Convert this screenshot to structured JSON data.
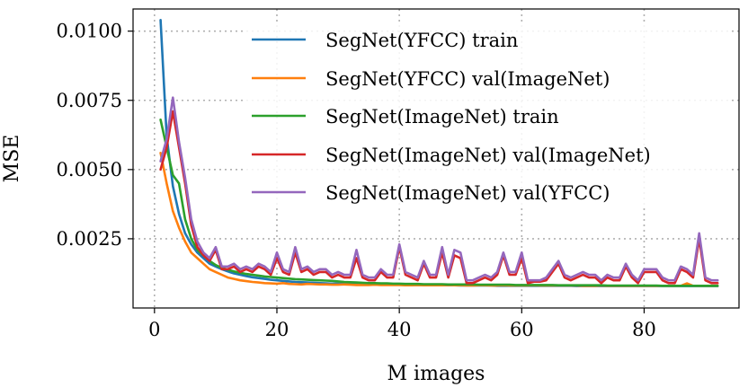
{
  "chart_data": {
    "type": "line",
    "title": "",
    "xlabel": "M images",
    "ylabel": "MSE",
    "xlim": [
      -3.5,
      95.5
    ],
    "ylim": [
      0.0,
      0.0108
    ],
    "xticks": [
      0,
      20,
      40,
      60,
      80
    ],
    "xtick_labels": [
      "0",
      "20",
      "40",
      "60",
      "80"
    ],
    "yticks": [
      0.0025,
      0.005,
      0.0075,
      0.01
    ],
    "ytick_labels": [
      "0.0025",
      "0.0050",
      "0.0075",
      "0.0100"
    ],
    "grid": true,
    "legend_position": "top-right",
    "x": [
      1,
      2,
      3,
      4,
      5,
      6,
      7,
      8,
      9,
      10,
      11,
      12,
      13,
      14,
      15,
      16,
      17,
      18,
      19,
      20,
      21,
      22,
      23,
      24,
      25,
      26,
      27,
      28,
      29,
      30,
      31,
      32,
      33,
      34,
      35,
      36,
      37,
      38,
      39,
      40,
      41,
      42,
      43,
      44,
      45,
      46,
      47,
      48,
      49,
      50,
      51,
      52,
      53,
      54,
      55,
      56,
      57,
      58,
      59,
      60,
      61,
      62,
      63,
      64,
      65,
      66,
      67,
      68,
      69,
      70,
      71,
      72,
      73,
      74,
      75,
      76,
      77,
      78,
      79,
      80,
      81,
      82,
      83,
      84,
      85,
      86,
      87,
      88,
      89,
      90,
      91,
      92
    ],
    "series": [
      {
        "name": "SegNet(YFCC) train",
        "color": "#1f77b4",
        "values": [
          0.0104,
          0.0062,
          0.0044,
          0.0034,
          0.0027,
          0.0023,
          0.002,
          0.0018,
          0.0016,
          0.0015,
          0.0014,
          0.00132,
          0.00125,
          0.0012,
          0.00115,
          0.00111,
          0.00108,
          0.00105,
          0.00102,
          0.001,
          0.00098,
          0.00096,
          0.00094,
          0.00093,
          0.00092,
          0.00091,
          0.0009,
          0.00089,
          0.00088,
          0.00088,
          0.00087,
          0.00087,
          0.00086,
          0.00086,
          0.00085,
          0.00085,
          0.00085,
          0.00084,
          0.00084,
          0.00084,
          0.00083,
          0.00083,
          0.00083,
          0.00083,
          0.00082,
          0.00082,
          0.00082,
          0.00082,
          0.00082,
          0.00081,
          0.00081,
          0.00081,
          0.00081,
          0.00081,
          0.00081,
          0.0008,
          0.0008,
          0.0008,
          0.0008,
          0.0008,
          0.0008,
          0.0008,
          0.0008,
          0.0008,
          0.0008,
          0.0008,
          0.0008,
          0.0008,
          0.00079,
          0.00079,
          0.00079,
          0.00079,
          0.00079,
          0.00079,
          0.00079,
          0.00079,
          0.00079,
          0.00079,
          0.00079,
          0.00079,
          0.00079,
          0.00079,
          0.00079,
          0.00079,
          0.00079,
          0.00079,
          0.00079,
          0.00079,
          0.00079,
          0.00079,
          0.00079,
          0.00079
        ]
      },
      {
        "name": "SegNet(YFCC) val(ImageNet)",
        "color": "#ff7f0e",
        "values": [
          0.0056,
          0.0045,
          0.0035,
          0.0029,
          0.0024,
          0.002,
          0.0018,
          0.0016,
          0.0014,
          0.0013,
          0.0012,
          0.0011,
          0.00105,
          0.001,
          0.00097,
          0.00094,
          0.00092,
          0.0009,
          0.00089,
          0.00088,
          0.0009,
          0.00087,
          0.00086,
          0.00085,
          0.00087,
          0.00086,
          0.00085,
          0.00085,
          0.00084,
          0.00084,
          0.00085,
          0.00084,
          0.00083,
          0.00083,
          0.00083,
          0.00084,
          0.00083,
          0.00083,
          0.00083,
          0.00083,
          0.00082,
          0.00082,
          0.00083,
          0.00082,
          0.00082,
          0.00082,
          0.00082,
          0.00083,
          0.00082,
          0.00082,
          0.00081,
          0.00081,
          0.00082,
          0.00082,
          0.00081,
          0.00081,
          0.00082,
          0.00081,
          0.00081,
          0.00081,
          0.00081,
          0.00082,
          0.00081,
          0.00081,
          0.00081,
          0.00081,
          0.00081,
          0.00081,
          0.00081,
          0.0008,
          0.0008,
          0.0008,
          0.00081,
          0.0008,
          0.0008,
          0.0008,
          0.0008,
          0.0008,
          0.0008,
          0.0008,
          0.0008,
          0.0008,
          0.0008,
          0.0008,
          0.0008,
          0.0008,
          0.00089,
          0.0008,
          0.0008,
          0.0008,
          0.0008,
          0.0008
        ]
      },
      {
        "name": "SegNet(ImageNet) train",
        "color": "#2ca02c",
        "values": [
          0.0068,
          0.0058,
          0.0048,
          0.0045,
          0.0032,
          0.0025,
          0.0021,
          0.0019,
          0.0017,
          0.00155,
          0.00145,
          0.00138,
          0.00132,
          0.00127,
          0.00123,
          0.0012,
          0.00117,
          0.00114,
          0.00112,
          0.0011,
          0.00108,
          0.00106,
          0.00104,
          0.00103,
          0.00102,
          0.00101,
          0.001,
          0.00099,
          0.00098,
          0.00096,
          0.00094,
          0.00093,
          0.00092,
          0.00091,
          0.0009,
          0.0009,
          0.00089,
          0.00089,
          0.00088,
          0.00088,
          0.00087,
          0.00087,
          0.00087,
          0.00086,
          0.00086,
          0.00086,
          0.00086,
          0.00085,
          0.00085,
          0.00085,
          0.00085,
          0.00085,
          0.00084,
          0.00084,
          0.00084,
          0.00084,
          0.00084,
          0.00084,
          0.00083,
          0.00083,
          0.00083,
          0.00083,
          0.00083,
          0.00083,
          0.00083,
          0.00082,
          0.00082,
          0.00082,
          0.00082,
          0.00082,
          0.00082,
          0.00082,
          0.00082,
          0.00081,
          0.00081,
          0.00081,
          0.00081,
          0.00081,
          0.00081,
          0.00081,
          0.00081,
          0.00081,
          0.0008,
          0.0008,
          0.0008,
          0.0008,
          0.0008,
          0.0008,
          0.0008,
          0.0008,
          0.0008,
          0.0008
        ]
      },
      {
        "name": "SegNet(ImageNet) val(ImageNet)",
        "color": "#d62728",
        "values": [
          0.005,
          0.0058,
          0.0071,
          0.0058,
          0.0045,
          0.003,
          0.0022,
          0.0019,
          0.0017,
          0.0021,
          0.0014,
          0.0014,
          0.0015,
          0.0013,
          0.0014,
          0.0013,
          0.0015,
          0.0014,
          0.0012,
          0.0018,
          0.0013,
          0.0012,
          0.002,
          0.0013,
          0.0014,
          0.0012,
          0.0013,
          0.0013,
          0.0011,
          0.0012,
          0.0011,
          0.0011,
          0.0018,
          0.0011,
          0.001,
          0.001,
          0.0013,
          0.0011,
          0.0011,
          0.0022,
          0.0012,
          0.0011,
          0.001,
          0.0016,
          0.0011,
          0.0011,
          0.002,
          0.0011,
          0.0019,
          0.0018,
          0.0009,
          0.0009,
          0.001,
          0.0011,
          0.001,
          0.0012,
          0.0019,
          0.0012,
          0.0012,
          0.0018,
          0.0009,
          0.00095,
          0.00095,
          0.001,
          0.0013,
          0.0016,
          0.0011,
          0.001,
          0.0011,
          0.0012,
          0.0011,
          0.0011,
          0.0009,
          0.0011,
          0.001,
          0.001,
          0.0015,
          0.0011,
          0.0009,
          0.0013,
          0.0013,
          0.0013,
          0.001,
          0.0009,
          0.0009,
          0.0014,
          0.0013,
          0.0011,
          0.0025,
          0.001,
          0.0009,
          0.0009
        ]
      },
      {
        "name": "SegNet(ImageNet) val(YFCC)",
        "color": "#9467bd",
        "values": [
          0.0053,
          0.0061,
          0.0076,
          0.006,
          0.0047,
          0.0032,
          0.0024,
          0.002,
          0.0018,
          0.0022,
          0.0015,
          0.0015,
          0.0016,
          0.0014,
          0.0015,
          0.0014,
          0.0016,
          0.0015,
          0.0013,
          0.002,
          0.0014,
          0.0013,
          0.0022,
          0.0014,
          0.0015,
          0.0013,
          0.0014,
          0.0014,
          0.0012,
          0.0013,
          0.0012,
          0.0012,
          0.0021,
          0.0012,
          0.0011,
          0.0011,
          0.0014,
          0.0012,
          0.0012,
          0.0023,
          0.0013,
          0.0012,
          0.0011,
          0.0017,
          0.0012,
          0.0012,
          0.0022,
          0.0012,
          0.0021,
          0.002,
          0.001,
          0.001,
          0.0011,
          0.0012,
          0.0011,
          0.0013,
          0.002,
          0.0013,
          0.0013,
          0.002,
          0.001,
          0.001,
          0.001,
          0.0011,
          0.0014,
          0.0017,
          0.0012,
          0.0011,
          0.0012,
          0.0013,
          0.0012,
          0.0012,
          0.001,
          0.0012,
          0.0011,
          0.0011,
          0.0016,
          0.0012,
          0.001,
          0.0014,
          0.0014,
          0.0014,
          0.0011,
          0.001,
          0.001,
          0.0015,
          0.0014,
          0.0012,
          0.0027,
          0.0011,
          0.001,
          0.001
        ]
      }
    ]
  }
}
